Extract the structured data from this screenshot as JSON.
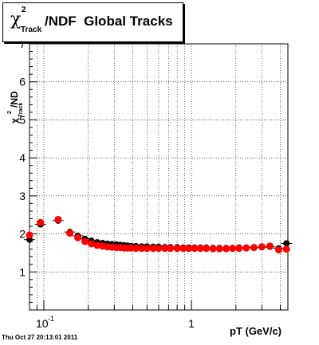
{
  "title": {
    "chi": "χ",
    "sup": "2",
    "sub": "Track",
    "main": "/NDF  Global Tracks"
  },
  "footer": "Thu Oct 27 20:13:01 2011",
  "colors": {
    "black_series": "#000000",
    "red_series": "#ff0000",
    "grid": "#000000"
  },
  "chart_data": {
    "type": "scatter",
    "title": "χ²Track/NDF  Global Tracks",
    "xlabel": "pT (GeV/c)",
    "ylabel": "χ²Track/NDF",
    "xscale": "log",
    "xlim": [
      0.08,
      4.5
    ],
    "ylim": [
      0,
      7
    ],
    "yticks": [
      "1",
      "2",
      "3",
      "4",
      "5",
      "6",
      "7"
    ],
    "xticks": [
      "10",
      "1"
    ],
    "xtick_exponent": "-1",
    "grid": true,
    "series": [
      {
        "color": "#000000",
        "x": [
          0.08,
          0.095,
          0.125,
          0.15,
          0.17,
          0.19,
          0.21,
          0.23,
          0.25,
          0.27,
          0.29,
          0.31,
          0.33,
          0.35,
          0.37,
          0.39,
          0.42,
          0.46,
          0.5,
          0.55,
          0.6,
          0.66,
          0.72,
          0.8,
          0.88,
          0.96,
          1.05,
          1.15,
          1.26,
          1.4,
          1.55,
          1.72,
          1.9,
          2.1,
          2.35,
          2.65,
          3.0,
          3.4,
          3.9,
          4.4
        ],
        "y": [
          1.85,
          2.25,
          2.35,
          2.05,
          1.95,
          1.87,
          1.82,
          1.78,
          1.76,
          1.74,
          1.73,
          1.72,
          1.71,
          1.7,
          1.69,
          1.68,
          1.68,
          1.67,
          1.67,
          1.66,
          1.66,
          1.65,
          1.65,
          1.65,
          1.64,
          1.64,
          1.64,
          1.64,
          1.64,
          1.63,
          1.63,
          1.63,
          1.63,
          1.64,
          1.64,
          1.65,
          1.65,
          1.66,
          1.62,
          1.75
        ]
      },
      {
        "color": "#ff0000",
        "x": [
          0.08,
          0.095,
          0.125,
          0.15,
          0.17,
          0.19,
          0.21,
          0.23,
          0.25,
          0.27,
          0.29,
          0.31,
          0.33,
          0.35,
          0.37,
          0.39,
          0.42,
          0.46,
          0.5,
          0.55,
          0.6,
          0.66,
          0.72,
          0.8,
          0.88,
          0.96,
          1.05,
          1.15,
          1.26,
          1.4,
          1.55,
          1.72,
          1.9,
          2.1,
          2.35,
          2.65,
          3.0,
          3.4,
          3.9,
          4.4
        ],
        "y": [
          1.97,
          2.3,
          2.38,
          2.02,
          1.9,
          1.8,
          1.74,
          1.7,
          1.68,
          1.66,
          1.65,
          1.64,
          1.64,
          1.63,
          1.63,
          1.63,
          1.62,
          1.62,
          1.62,
          1.62,
          1.62,
          1.62,
          1.62,
          1.62,
          1.62,
          1.62,
          1.62,
          1.62,
          1.62,
          1.61,
          1.61,
          1.61,
          1.62,
          1.62,
          1.63,
          1.64,
          1.66,
          1.68,
          1.58,
          1.6
        ]
      }
    ]
  }
}
